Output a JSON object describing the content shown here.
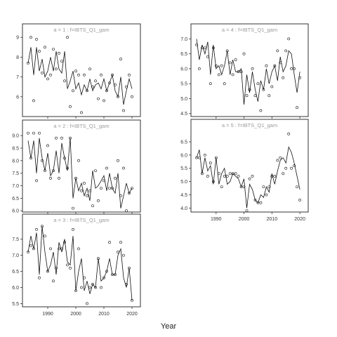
{
  "figure": {
    "xlabel": "Year"
  },
  "chart_data": [
    {
      "type": "line",
      "strip": "a = 1 : f=IBTS_Q1_gam",
      "xlim": [
        1981,
        2023
      ],
      "ylim": [
        5.0,
        9.15
      ],
      "xticks": [
        1990,
        2000,
        2010,
        2020
      ],
      "yticks": [
        6,
        7,
        8,
        9
      ],
      "show_xtick_labels": false,
      "series": [
        {
          "style": "line",
          "x": [
            1983,
            1984,
            1985,
            1986,
            1987,
            1988,
            1989,
            1990,
            1991,
            1992,
            1993,
            1994,
            1995,
            1996,
            1997,
            1998,
            1999,
            2000,
            2001,
            2002,
            2003,
            2004,
            2005,
            2006,
            2007,
            2008,
            2009,
            2010,
            2011,
            2012,
            2013,
            2014,
            2015,
            2016,
            2017,
            2018,
            2019,
            2020
          ],
          "y": [
            7.7,
            8.5,
            7.1,
            8.5,
            7.3,
            7.9,
            7.0,
            7.3,
            8.0,
            7.3,
            8.3,
            7.4,
            7.2,
            8.3,
            6.4,
            6.8,
            7.3,
            6.4,
            6.7,
            6.1,
            6.6,
            6.3,
            6.9,
            6.3,
            6.6,
            6.7,
            6.4,
            6.9,
            6.3,
            6.7,
            7.1,
            6.3,
            6.0,
            7.0,
            5.6,
            6.3,
            6.9,
            6.4
          ]
        },
        {
          "style": "points",
          "x": [
            1983,
            1984,
            1985,
            1986,
            1987,
            1988,
            1989,
            1990,
            1991,
            1992,
            1993,
            1994,
            1995,
            1996,
            1997,
            1998,
            1999,
            2000,
            2001,
            2002,
            2003,
            2004,
            2005,
            2006,
            2007,
            2008,
            2009,
            2010,
            2011,
            2012,
            2013,
            2014,
            2015,
            2016,
            2017,
            2018,
            2019,
            2020
          ],
          "y": [
            7.7,
            9.0,
            5.8,
            8.9,
            8.3,
            7.2,
            8.5,
            6.9,
            7.1,
            8.4,
            7.4,
            8.2,
            7.8,
            6.8,
            9.0,
            5.5,
            6.3,
            7.3,
            7.1,
            5.2,
            7.1,
            6.3,
            7.4,
            6.5,
            6.8,
            5.9,
            7.1,
            5.8,
            6.3,
            6.7,
            7.1,
            6.6,
            6.0,
            7.9,
            5.3,
            6.5,
            7.1,
            6.0
          ]
        }
      ]
    },
    {
      "type": "line",
      "strip": "a = 2 : f=IBTS_Q1_gam",
      "xlim": [
        1981,
        2023
      ],
      "ylim": [
        5.95,
        9.2
      ],
      "xticks": [
        1990,
        2000,
        2010,
        2020
      ],
      "yticks": [
        6.0,
        6.5,
        7.0,
        7.5,
        8.0,
        8.5,
        9.0
      ],
      "show_xtick_labels": false,
      "series": [
        {
          "style": "line",
          "x": [
            1983,
            1984,
            1985,
            1986,
            1987,
            1988,
            1989,
            1990,
            1991,
            1992,
            1993,
            1994,
            1995,
            1996,
            1997,
            1998,
            1999,
            2000,
            2001,
            2002,
            2003,
            2004,
            2005,
            2006,
            2007,
            2008,
            2009,
            2010,
            2011,
            2012,
            2013,
            2014,
            2015,
            2016,
            2017,
            2018,
            2019,
            2020
          ],
          "y": [
            8.8,
            8.1,
            8.8,
            7.5,
            8.9,
            8.1,
            7.6,
            8.3,
            7.4,
            7.6,
            8.4,
            7.5,
            8.7,
            8.1,
            7.6,
            8.9,
            6.5,
            7.3,
            6.8,
            7.1,
            6.6,
            6.9,
            6.4,
            7.6,
            6.9,
            7.0,
            7.2,
            7.4,
            6.8,
            7.5,
            6.9,
            6.7,
            7.5,
            6.1,
            6.6,
            7.1,
            6.7,
            6.9
          ]
        },
        {
          "style": "points",
          "x": [
            1983,
            1984,
            1985,
            1986,
            1987,
            1988,
            1989,
            1990,
            1991,
            1992,
            1993,
            1994,
            1995,
            1996,
            1997,
            1998,
            1999,
            2000,
            2001,
            2002,
            2003,
            2004,
            2005,
            2006,
            2007,
            2008,
            2009,
            2010,
            2011,
            2012,
            2013,
            2014,
            2015,
            2016,
            2017,
            2018,
            2019,
            2020
          ],
          "y": [
            9.1,
            8.1,
            9.1,
            7.2,
            9.1,
            8.0,
            7.6,
            8.6,
            7.3,
            7.6,
            8.9,
            7.3,
            8.9,
            8.1,
            7.7,
            8.9,
            6.1,
            7.3,
            8.0,
            6.8,
            7.1,
            6.6,
            6.8,
            6.2,
            7.6,
            6.4,
            6.9,
            7.2,
            7.7,
            6.9,
            6.9,
            7.3,
            8.0,
            6.6,
            7.7,
            6.0,
            6.7,
            6.9
          ]
        }
      ]
    },
    {
      "type": "line",
      "strip": "a = 3 : f=IBTS_Q1_gam",
      "xlim": [
        1981,
        2023
      ],
      "ylim": [
        5.4,
        7.95
      ],
      "xticks": [
        1990,
        2000,
        2010,
        2020
      ],
      "yticks": [
        5.5,
        6.0,
        6.5,
        7.0,
        7.5
      ],
      "show_xtick_labels": true,
      "series": [
        {
          "style": "line",
          "x": [
            1983,
            1984,
            1985,
            1986,
            1987,
            1988,
            1989,
            1990,
            1991,
            1992,
            1993,
            1994,
            1995,
            1996,
            1997,
            1998,
            1999,
            2000,
            2001,
            2002,
            2003,
            2004,
            2005,
            2006,
            2007,
            2008,
            2009,
            2010,
            2011,
            2012,
            2013,
            2014,
            2015,
            2016,
            2017,
            2018,
            2019,
            2020
          ],
          "y": [
            7.1,
            7.6,
            7.2,
            7.7,
            6.4,
            7.9,
            7.1,
            6.5,
            6.7,
            7.1,
            6.4,
            7.4,
            7.1,
            7.5,
            6.8,
            6.7,
            7.6,
            5.9,
            6.5,
            6.9,
            5.9,
            6.2,
            5.8,
            6.1,
            6.0,
            6.9,
            6.2,
            6.3,
            6.5,
            6.9,
            6.4,
            6.4,
            7.0,
            7.2,
            6.3,
            6.0,
            6.6,
            5.6
          ]
        },
        {
          "style": "points",
          "x": [
            1983,
            1984,
            1985,
            1986,
            1987,
            1988,
            1989,
            1990,
            1991,
            1992,
            1993,
            1994,
            1995,
            1996,
            1997,
            1998,
            1999,
            2000,
            2001,
            2002,
            2003,
            2004,
            2005,
            2006,
            2007,
            2008,
            2009,
            2010,
            2011,
            2012,
            2013,
            2014,
            2015,
            2016,
            2017,
            2018,
            2019,
            2020
          ],
          "y": [
            7.1,
            7.3,
            7.2,
            7.8,
            6.3,
            7.9,
            7.6,
            6.5,
            7.2,
            6.2,
            6.6,
            7.2,
            7.2,
            7.4,
            6.7,
            6.6,
            7.8,
            5.9,
            7.2,
            6.0,
            6.3,
            5.5,
            6.0,
            6.1,
            6.0,
            6.9,
            6.0,
            6.3,
            6.5,
            7.4,
            6.4,
            6.4,
            7.1,
            7.4,
            7.0,
            6.1,
            6.6,
            5.6
          ]
        }
      ]
    },
    {
      "type": "line",
      "strip": "a = 4 : f=IBTS_Q1_gam",
      "xlim": [
        1981,
        2023
      ],
      "ylim": [
        4.4,
        7.15
      ],
      "xticks": [
        1990,
        2000,
        2010,
        2020
      ],
      "yticks": [
        4.5,
        5.0,
        5.5,
        6.0,
        6.5,
        7.0
      ],
      "show_xtick_labels": false,
      "series": [
        {
          "style": "line",
          "x": [
            1983,
            1984,
            1985,
            1986,
            1987,
            1988,
            1989,
            1990,
            1991,
            1992,
            1993,
            1994,
            1995,
            1996,
            1997,
            1998,
            1999,
            2000,
            2001,
            2002,
            2003,
            2004,
            2005,
            2006,
            2007,
            2008,
            2009,
            2010,
            2011,
            2012,
            2013,
            2014,
            2015,
            2016,
            2017,
            2018,
            2019,
            2020
          ],
          "y": [
            7.0,
            6.3,
            6.8,
            6.5,
            6.9,
            5.8,
            6.8,
            6.0,
            6.1,
            5.8,
            6.1,
            6.6,
            5.8,
            6.3,
            5.9,
            5.9,
            6.0,
            4.8,
            5.8,
            5.2,
            5.9,
            5.3,
            4.9,
            5.6,
            5.3,
            6.0,
            5.5,
            5.9,
            6.1,
            5.6,
            6.4,
            5.9,
            6.1,
            6.6,
            6.5,
            5.8,
            5.2,
            5.9
          ]
        },
        {
          "style": "points",
          "x": [
            1983,
            1984,
            1985,
            1986,
            1987,
            1988,
            1989,
            1990,
            1991,
            1992,
            1993,
            1994,
            1995,
            1996,
            1997,
            1998,
            1999,
            2000,
            2001,
            2002,
            2003,
            2004,
            2005,
            2006,
            2007,
            2008,
            2009,
            2010,
            2011,
            2012,
            2013,
            2014,
            2015,
            2016,
            2017,
            2018,
            2019,
            2020
          ],
          "y": [
            6.8,
            6.0,
            6.7,
            6.7,
            6.4,
            5.5,
            6.7,
            6.1,
            5.8,
            6.1,
            5.5,
            6.6,
            6.2,
            5.8,
            6.3,
            5.9,
            5.9,
            6.5,
            5.1,
            5.3,
            6.0,
            5.1,
            5.5,
            4.6,
            5.3,
            6.1,
            5.1,
            5.4,
            6.1,
            6.6,
            6.2,
            5.7,
            6.6,
            7.0,
            6.0,
            6.0,
            4.7,
            5.7
          ]
        }
      ]
    },
    {
      "type": "line",
      "strip": "a = 5 : f=IBTS_Q1_gam",
      "xlim": [
        1981,
        2023
      ],
      "ylim": [
        3.85,
        6.95
      ],
      "xticks": [
        1990,
        2000,
        2010,
        2020
      ],
      "yticks": [
        4.0,
        4.5,
        5.0,
        5.5,
        6.0,
        6.5
      ],
      "show_xtick_labels": true,
      "series": [
        {
          "style": "line",
          "x": [
            1983,
            1984,
            1985,
            1986,
            1987,
            1988,
            1989,
            1990,
            1991,
            1992,
            1993,
            1994,
            1995,
            1996,
            1997,
            1998,
            1999,
            2000,
            2001,
            2002,
            2003,
            2004,
            2005,
            2006,
            2007,
            2008,
            2009,
            2010,
            2011,
            2012,
            2013,
            2014,
            2015,
            2016,
            2017,
            2018,
            2019,
            2020
          ],
          "y": [
            5.9,
            6.2,
            5.3,
            5.9,
            5.4,
            5.6,
            4.9,
            5.9,
            4.9,
            5.3,
            5.5,
            4.9,
            5.0,
            5.3,
            5.2,
            5.1,
            4.8,
            5.1,
            4.0,
            4.9,
            4.7,
            4.3,
            4.2,
            4.5,
            4.4,
            4.8,
            4.6,
            5.3,
            4.9,
            5.4,
            5.8,
            5.9,
            5.7,
            6.3,
            6.1,
            5.7,
            5.2,
            4.7
          ]
        },
        {
          "style": "points",
          "x": [
            1983,
            1984,
            1985,
            1986,
            1987,
            1988,
            1989,
            1990,
            1991,
            1992,
            1993,
            1994,
            1995,
            1996,
            1997,
            1998,
            1999,
            2000,
            2001,
            2002,
            2003,
            2004,
            2005,
            2006,
            2007,
            2008,
            2009,
            2010,
            2011,
            2012,
            2013,
            2014,
            2015,
            2016,
            2017,
            2018,
            2019,
            2020
          ],
          "y": [
            5.9,
            5.9,
            5.3,
            6.0,
            5.2,
            5.7,
            5.0,
            5.9,
            5.3,
            4.8,
            5.2,
            5.2,
            5.3,
            5.3,
            5.3,
            5.2,
            4.8,
            4.8,
            3.9,
            5.1,
            5.2,
            4.3,
            4.2,
            4.2,
            4.8,
            4.5,
            4.8,
            5.2,
            5.2,
            5.8,
            5.9,
            5.3,
            5.5,
            6.8,
            5.5,
            5.6,
            4.8,
            4.3
          ]
        }
      ]
    }
  ]
}
